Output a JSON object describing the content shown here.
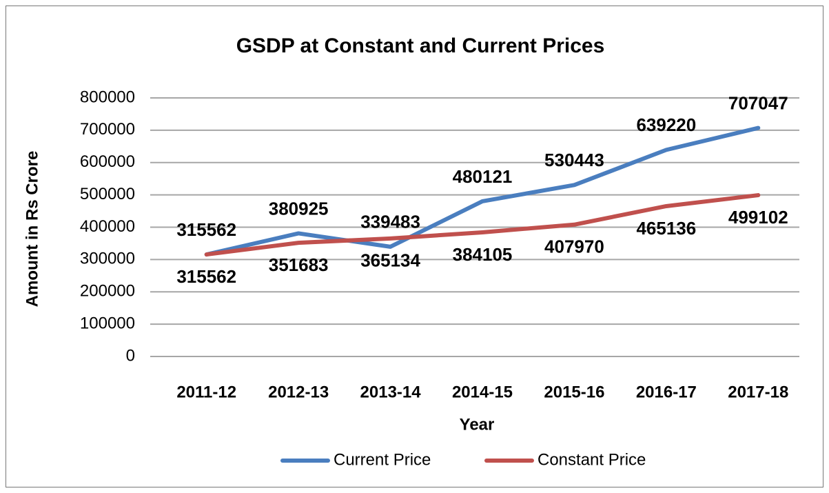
{
  "chart_data": {
    "type": "line",
    "title": "GSDP at Constant and Current Prices",
    "y_label": "Amount in Rs Crore",
    "x_label": "Year",
    "categories": [
      "2011-12",
      "2012-13",
      "2013-14",
      "2014-15",
      "2015-16",
      "2016-17",
      "2017-18"
    ],
    "series": [
      {
        "name": "Current Price",
        "color": "#4a7ebf",
        "values": [
          315562,
          380925,
          339483,
          480121,
          530443,
          639220,
          707047
        ]
      },
      {
        "name": "Constant Price",
        "color": "#c0504d",
        "values": [
          315562,
          351683,
          365134,
          384105,
          407970,
          465136,
          499102
        ]
      }
    ],
    "ylim": [
      0,
      800000
    ],
    "yticks": [
      0,
      100000,
      200000,
      300000,
      400000,
      500000,
      600000,
      700000,
      800000
    ],
    "grid": true,
    "legend": "bottom"
  }
}
